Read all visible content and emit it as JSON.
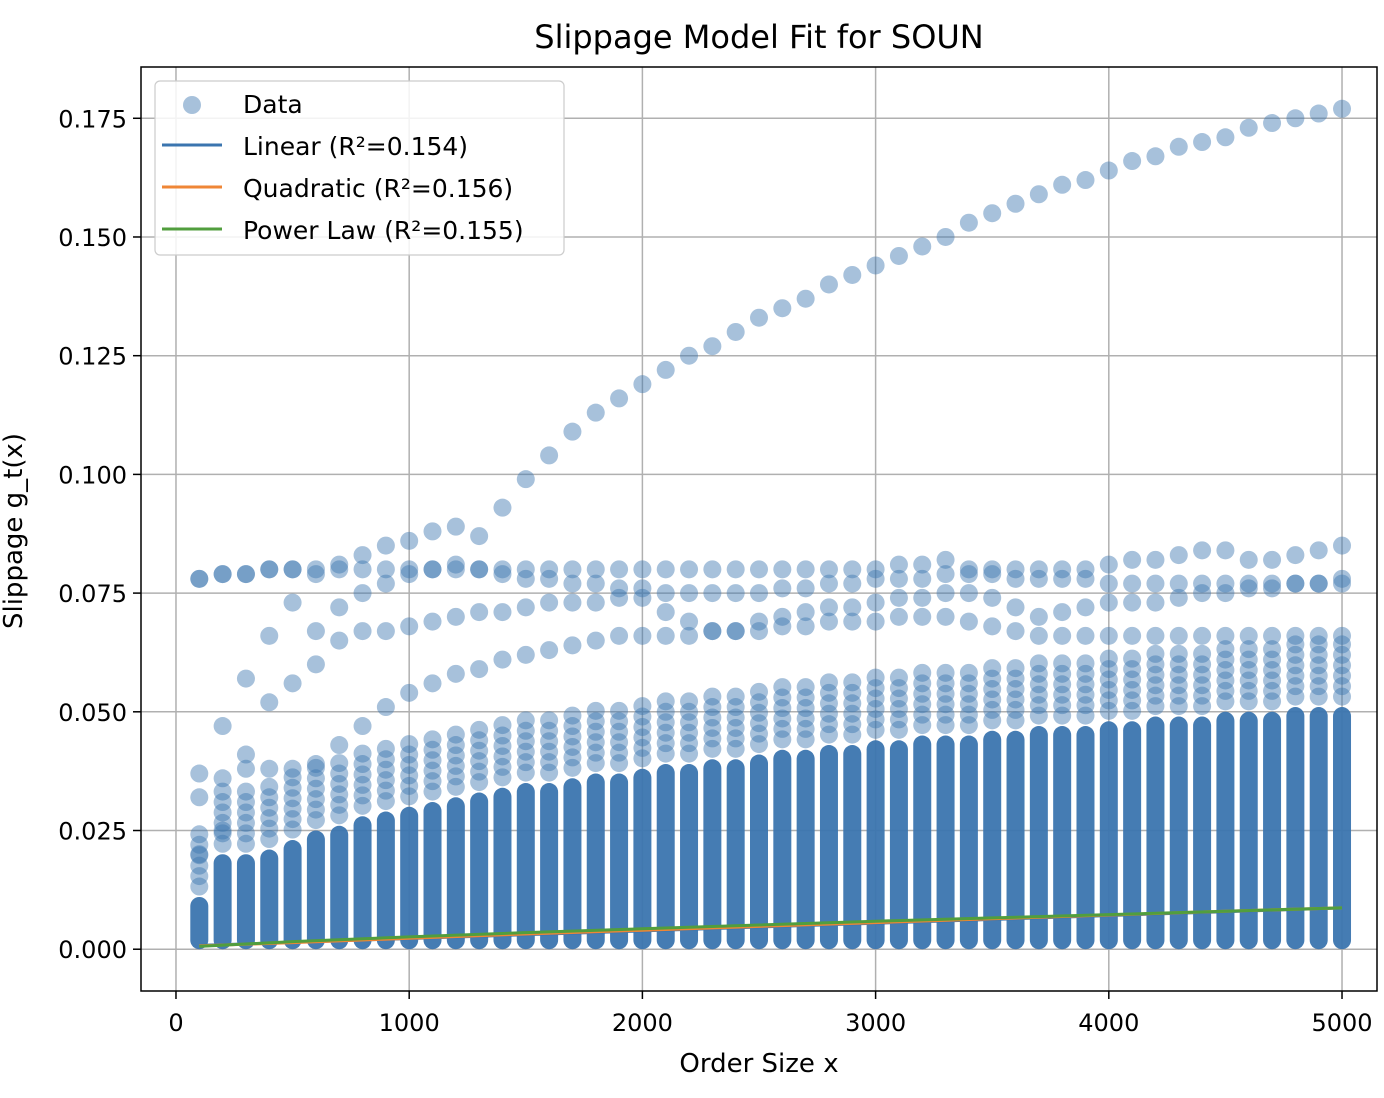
{
  "chart_data": {
    "type": "scatter",
    "title": "Slippage Model Fit for SOUN",
    "xlabel": "Order Size x",
    "ylabel": "Slippage g_t(x)",
    "xlim": [
      -150,
      5150
    ],
    "ylim": [
      -0.0088,
      0.1858
    ],
    "xticks": [
      0,
      1000,
      2000,
      3000,
      4000,
      5000
    ],
    "xtick_labels": [
      "0",
      "1000",
      "2000",
      "3000",
      "4000",
      "5000"
    ],
    "yticks": [
      0.0,
      0.025,
      0.05,
      0.075,
      0.1,
      0.125,
      0.15,
      0.175
    ],
    "ytick_labels": [
      "0.000",
      "0.025",
      "0.050",
      "0.075",
      "0.100",
      "0.125",
      "0.150",
      "0.175"
    ],
    "grid": true,
    "legend_position": "top-left",
    "x_values": [
      100,
      200,
      300,
      400,
      500,
      600,
      700,
      800,
      900,
      1000,
      1100,
      1200,
      1300,
      1400,
      1500,
      1600,
      1700,
      1800,
      1900,
      2000,
      2100,
      2200,
      2300,
      2400,
      2500,
      2600,
      2700,
      2800,
      2900,
      3000,
      3100,
      3200,
      3300,
      3400,
      3500,
      3600,
      3700,
      3800,
      3900,
      4000,
      4100,
      4200,
      4300,
      4400,
      4500,
      4600,
      4700,
      4800,
      4900,
      5000
    ],
    "dense_band_top": [
      0.011,
      0.02,
      0.02,
      0.021,
      0.023,
      0.025,
      0.026,
      0.028,
      0.029,
      0.03,
      0.031,
      0.032,
      0.033,
      0.034,
      0.035,
      0.035,
      0.036,
      0.037,
      0.037,
      0.038,
      0.039,
      0.039,
      0.04,
      0.04,
      0.041,
      0.042,
      0.042,
      0.043,
      0.043,
      0.044,
      0.044,
      0.045,
      0.045,
      0.045,
      0.046,
      0.046,
      0.047,
      0.047,
      0.047,
      0.048,
      0.048,
      0.049,
      0.049,
      0.049,
      0.05,
      0.05,
      0.05,
      0.051,
      0.051,
      0.051
    ],
    "series": [
      {
        "name": "Data",
        "type": "scatter",
        "color": "#3b75af",
        "opacity": 0.45,
        "x": [
          100,
          200,
          300,
          400,
          500,
          600,
          700,
          800,
          900,
          1000,
          1100,
          1200,
          1300,
          1400,
          1500,
          1600,
          1700,
          1800,
          1900,
          2000,
          2100,
          2200,
          2300,
          2400,
          2500,
          2600,
          2700,
          2800,
          2900,
          3000,
          3100,
          3200,
          3300,
          3400,
          3500,
          3600,
          3700,
          3800,
          3900,
          4000,
          4100,
          4200,
          4300,
          4400,
          4500,
          4600,
          4700,
          4800,
          4900,
          5000
        ],
        "upper_curve": [
          0.078,
          0.079,
          0.079,
          0.08,
          0.08,
          0.08,
          0.081,
          0.083,
          0.085,
          0.086,
          0.088,
          0.089,
          0.087,
          0.093,
          0.099,
          0.104,
          0.109,
          0.113,
          0.116,
          0.119,
          0.122,
          0.125,
          0.127,
          0.13,
          0.133,
          0.135,
          0.137,
          0.14,
          0.142,
          0.144,
          0.146,
          0.148,
          0.15,
          0.153,
          0.155,
          0.157,
          0.159,
          0.161,
          0.162,
          0.164,
          0.166,
          0.167,
          0.169,
          0.17,
          0.171,
          0.173,
          0.174,
          0.175,
          0.176,
          0.177
        ],
        "flat_row": [
          0.078,
          0.079,
          0.079,
          0.08,
          0.08,
          0.079,
          0.08,
          0.08,
          0.08,
          0.08,
          0.08,
          0.08,
          0.08,
          0.08,
          0.08,
          0.08,
          0.08,
          0.08,
          0.08,
          0.08,
          0.08,
          0.08,
          0.08,
          0.08,
          0.08,
          0.08,
          0.08,
          0.08,
          0.08,
          0.08,
          0.081,
          0.081,
          0.082,
          0.08,
          0.08,
          0.08,
          0.08,
          0.08,
          0.08,
          0.081,
          0.082,
          0.082,
          0.083,
          0.084,
          0.084,
          0.082,
          0.082,
          0.083,
          0.084,
          0.085
        ],
        "mid_curve_a": [
          0.037,
          0.047,
          0.057,
          0.066,
          0.073,
          0.067,
          0.072,
          0.075,
          0.077,
          0.079,
          0.08,
          0.081,
          0.08,
          0.079,
          0.078,
          0.078,
          0.077,
          0.077,
          0.076,
          0.076,
          0.075,
          0.075,
          0.075,
          0.075,
          0.075,
          0.076,
          0.076,
          0.077,
          0.077,
          0.078,
          0.078,
          0.078,
          0.079,
          0.079,
          0.079,
          0.078,
          0.078,
          0.078,
          0.078,
          0.077,
          0.077,
          0.077,
          0.077,
          0.077,
          0.077,
          0.077,
          0.077,
          0.077,
          0.077,
          0.077
        ],
        "mid_curve_b": [
          0.032,
          0.036,
          0.041,
          0.052,
          0.056,
          0.06,
          0.065,
          0.067,
          0.067,
          0.068,
          0.069,
          0.07,
          0.071,
          0.071,
          0.072,
          0.073,
          0.073,
          0.073,
          0.074,
          0.074,
          0.071,
          0.069,
          0.067,
          0.067,
          0.069,
          0.07,
          0.071,
          0.072,
          0.072,
          0.073,
          0.074,
          0.074,
          0.075,
          0.075,
          0.074,
          0.072,
          0.07,
          0.071,
          0.072,
          0.073,
          0.073,
          0.073,
          0.074,
          0.075,
          0.075,
          0.076,
          0.076,
          0.077,
          0.077,
          0.078
        ],
        "low_curve": [
          0.02,
          0.025,
          0.038,
          0.038,
          0.038,
          0.039,
          0.043,
          0.047,
          0.051,
          0.054,
          0.056,
          0.058,
          0.059,
          0.061,
          0.062,
          0.063,
          0.064,
          0.065,
          0.066,
          0.066,
          0.066,
          0.066,
          0.067,
          0.067,
          0.067,
          0.068,
          0.068,
          0.069,
          0.069,
          0.069,
          0.07,
          0.07,
          0.07,
          0.069,
          0.068,
          0.067,
          0.066,
          0.066,
          0.066,
          0.066,
          0.066,
          0.066,
          0.066,
          0.066,
          0.066,
          0.066,
          0.066,
          0.066,
          0.066,
          0.066
        ]
      },
      {
        "name": "Linear (R²=0.154)",
        "type": "line",
        "color": "#3b75af",
        "x": [
          100,
          5000
        ],
        "y": [
          0.0008,
          0.0087
        ]
      },
      {
        "name": "Quadratic (R²=0.156)",
        "type": "line",
        "color": "#ef8636",
        "x": [
          100,
          500,
          1000,
          1500,
          2000,
          2500,
          3000,
          3500,
          4000,
          4500,
          5000
        ],
        "y": [
          0.0007,
          0.0014,
          0.0023,
          0.0032,
          0.004,
          0.0048,
          0.0056,
          0.0064,
          0.0072,
          0.008,
          0.0087
        ]
      },
      {
        "name": "Power Law (R²=0.155)",
        "type": "line",
        "color": "#519e3e",
        "x": [
          100,
          500,
          1000,
          1500,
          2000,
          2500,
          3000,
          3500,
          4000,
          4500,
          5000
        ],
        "y": [
          0.0006,
          0.0016,
          0.0026,
          0.0035,
          0.0043,
          0.0051,
          0.0059,
          0.0066,
          0.0073,
          0.008,
          0.0087
        ]
      }
    ]
  }
}
